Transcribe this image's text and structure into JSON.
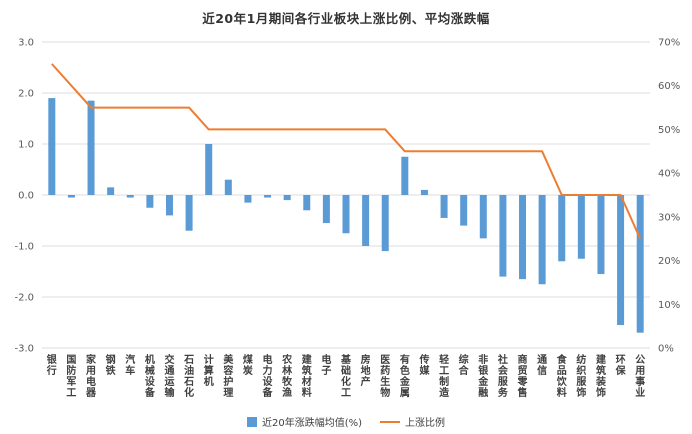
{
  "title": "近20年1月期间各行业板块上涨比例、平均涨跌幅",
  "legend": {
    "bar": "近20年涨跌幅均值(%)",
    "line": "上涨比例"
  },
  "colors": {
    "bar": "#5B9BD5",
    "line": "#ED7D31",
    "grid": "#DCDCDC",
    "axis_text": "#595959",
    "title_text": "#333333"
  },
  "axes": {
    "left_ticks": [
      "3.0",
      "2.0",
      "1.0",
      "0.0",
      "-1.0",
      "-2.0",
      "-3.0"
    ],
    "right_ticks": [
      "70%",
      "60%",
      "50%",
      "40%",
      "30%",
      "20%",
      "10%",
      "0%"
    ]
  },
  "chart_data": {
    "type": "bar",
    "title": "近20年1月期间各行业板块上涨比例、平均涨跌幅",
    "categories": [
      "银行",
      "国防军工",
      "家用电器",
      "钢铁",
      "汽车",
      "机械设备",
      "交通运输",
      "石油石化",
      "计算机",
      "美容护理",
      "煤炭",
      "电力设备",
      "农林牧渔",
      "建筑材料",
      "电子",
      "基础化工",
      "房地产",
      "医药生物",
      "有色金属",
      "传媒",
      "轻工制造",
      "综合",
      "非银金融",
      "社会服务",
      "商贸零售",
      "通信",
      "食品饮料",
      "纺织服饰",
      "建筑装饰",
      "环保",
      "公用事业"
    ],
    "series": [
      {
        "name": "近20年涨跌幅均值(%)",
        "type": "bar",
        "axis": "left",
        "values": [
          1.9,
          -0.05,
          1.85,
          0.15,
          -0.05,
          -0.25,
          -0.4,
          -0.7,
          1.0,
          0.3,
          -0.15,
          -0.05,
          -0.1,
          -0.3,
          -0.55,
          -0.75,
          -1.0,
          -1.1,
          0.75,
          0.1,
          -0.45,
          -0.6,
          -0.85,
          -1.6,
          -1.65,
          -1.75,
          -1.3,
          -1.25,
          -1.55,
          -2.55,
          -2.7
        ]
      },
      {
        "name": "上涨比例",
        "type": "line",
        "axis": "right",
        "values_percent": [
          65,
          60,
          55,
          55,
          55,
          55,
          55,
          55,
          50,
          50,
          50,
          50,
          50,
          50,
          50,
          50,
          50,
          50,
          45,
          45,
          45,
          45,
          45,
          45,
          45,
          45,
          35,
          35,
          35,
          35,
          25
        ]
      }
    ],
    "left_ylim": [
      -3,
      3
    ],
    "right_ylim_percent": [
      0,
      70
    ],
    "grid": true,
    "legend_position": "bottom"
  }
}
